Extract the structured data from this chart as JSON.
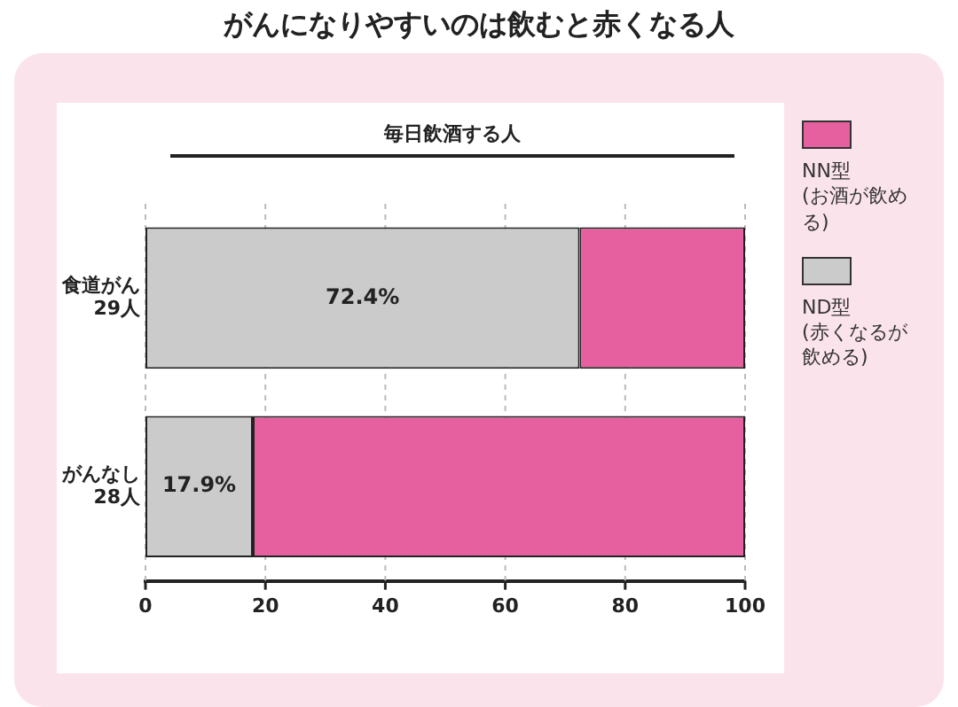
{
  "chart_data": {
    "type": "bar",
    "orientation": "horizontal",
    "stacked": true,
    "title": "がんになりやすいのは飲むと赤くなる人",
    "subtitle": "毎日飲酒する人",
    "categories": [
      "食道がん\n29人",
      "がんなし\n28人"
    ],
    "series": [
      {
        "name": "ND型\n(赤くなるが飲める)",
        "color": "#cbcbcb",
        "values": [
          72.4,
          17.9
        ],
        "value_labels": [
          "72.4%",
          "17.9%"
        ]
      },
      {
        "name": "NN型\n(お酒が飲める)",
        "color": "#e6609f",
        "values": [
          27.6,
          82.1
        ]
      }
    ],
    "xlim": [
      0,
      100
    ],
    "xticks": [
      0,
      20,
      40,
      60,
      80,
      100
    ],
    "grid": "x",
    "legend": "right"
  }
}
